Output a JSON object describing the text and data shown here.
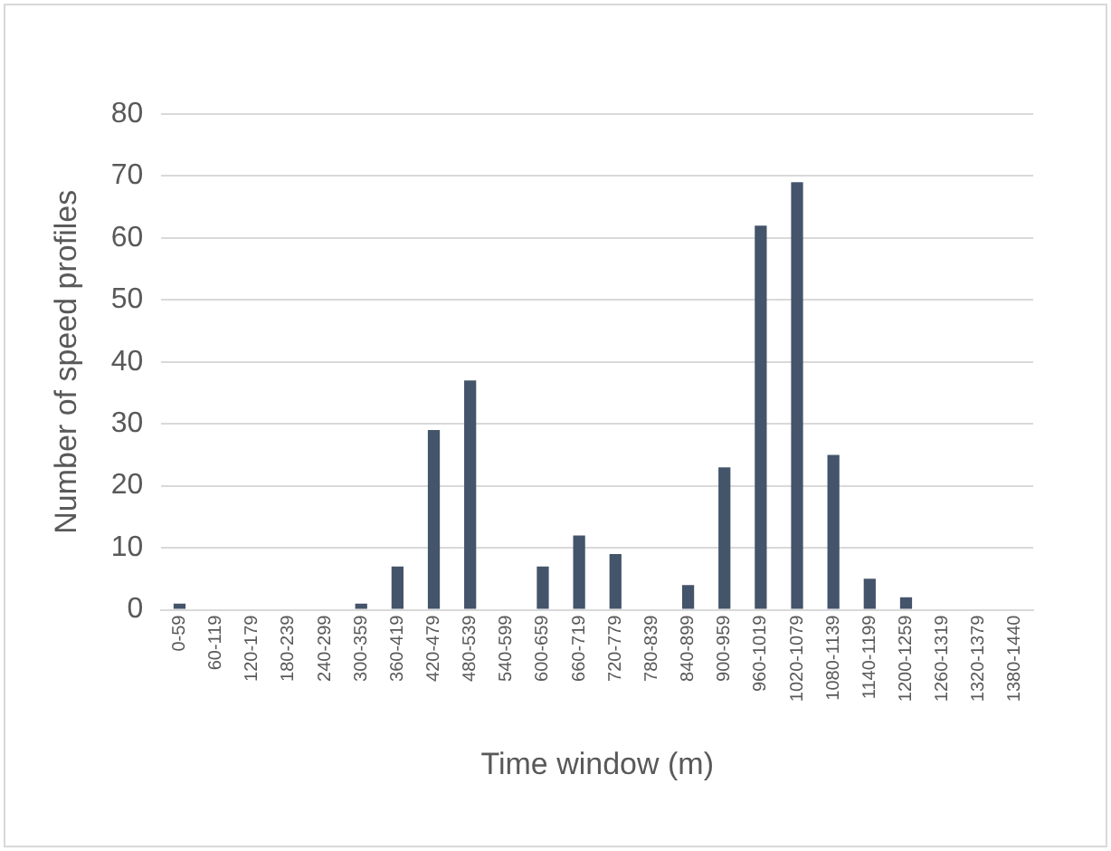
{
  "chart_data": {
    "type": "bar",
    "xlabel": "Time window (m)",
    "ylabel": "Number of speed profiles",
    "categories": [
      "0-59",
      "60-119",
      "120-179",
      "180-239",
      "240-299",
      "300-359",
      "360-419",
      "420-479",
      "480-539",
      "540-599",
      "600-659",
      "660-719",
      "720-779",
      "780-839",
      "840-899",
      "900-959",
      "960-1019",
      "1020-1079",
      "1080-1139",
      "1140-1199",
      "1200-1259",
      "1260-1319",
      "1320-1379",
      "1380-1440"
    ],
    "values": [
      1,
      0,
      0,
      0,
      0,
      1,
      7,
      29,
      37,
      0,
      7,
      12,
      9,
      0,
      4,
      23,
      62,
      69,
      25,
      5,
      2,
      0,
      0,
      0
    ],
    "color": "#44546a",
    "ylim": [
      0,
      80
    ],
    "yticks": [
      0,
      10,
      20,
      30,
      40,
      50,
      60,
      70,
      80
    ],
    "grid": "y"
  }
}
